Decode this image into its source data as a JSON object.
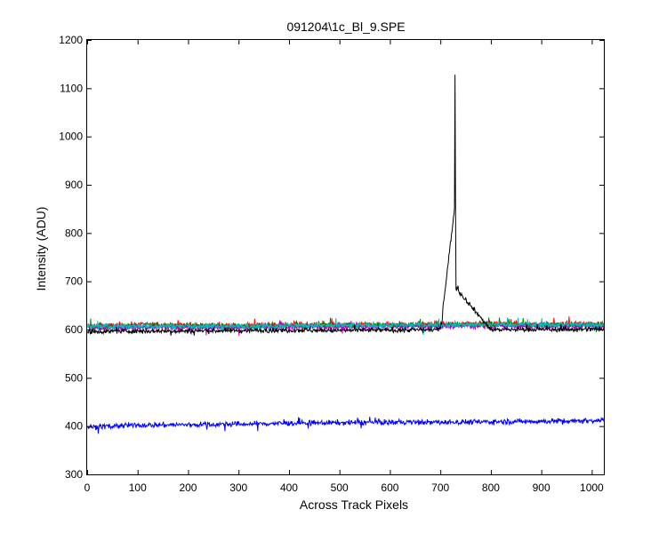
{
  "chart_data": {
    "type": "line",
    "title": "091204\\1c_Bl_9.SPE",
    "xlabel": "Across Track Pixels",
    "ylabel": "Intensity (ADU)",
    "xlim": [
      0,
      1024
    ],
    "ylim": [
      300,
      1200
    ],
    "xticks": [
      0,
      100,
      200,
      300,
      400,
      500,
      600,
      700,
      800,
      900,
      1000
    ],
    "yticks": [
      300,
      400,
      500,
      600,
      700,
      800,
      900,
      1000,
      1100,
      1200
    ],
    "grid": false,
    "legend": "none",
    "series": [
      {
        "color": "#ff0000",
        "points": [
          [
            0,
            606
          ],
          [
            100,
            610
          ],
          [
            200,
            609
          ],
          [
            300,
            608
          ],
          [
            400,
            610
          ],
          [
            500,
            609
          ],
          [
            600,
            610
          ],
          [
            700,
            611
          ],
          [
            800,
            612
          ],
          [
            900,
            611
          ],
          [
            1024,
            612
          ]
        ],
        "noise": 10
      },
      {
        "color": "#008000",
        "points": [
          [
            0,
            605
          ],
          [
            100,
            609
          ],
          [
            200,
            608
          ],
          [
            300,
            607
          ],
          [
            400,
            609
          ],
          [
            500,
            608
          ],
          [
            600,
            609
          ],
          [
            700,
            610
          ],
          [
            800,
            611
          ],
          [
            900,
            610
          ],
          [
            1024,
            611
          ]
        ],
        "noise": 10
      },
      {
        "color": "#bf00bf",
        "points": [
          [
            0,
            603
          ],
          [
            100,
            605
          ],
          [
            200,
            604
          ],
          [
            300,
            604
          ],
          [
            400,
            606
          ],
          [
            500,
            605
          ],
          [
            600,
            606
          ],
          [
            700,
            607
          ],
          [
            800,
            608
          ],
          [
            900,
            607
          ],
          [
            1024,
            608
          ]
        ],
        "noise": 10
      },
      {
        "color": "#00bfbf",
        "points": [
          [
            0,
            606
          ],
          [
            100,
            608
          ],
          [
            200,
            607
          ],
          [
            300,
            607
          ],
          [
            400,
            609
          ],
          [
            500,
            608
          ],
          [
            600,
            609
          ],
          [
            700,
            610
          ],
          [
            800,
            611
          ],
          [
            900,
            610
          ],
          [
            1024,
            611
          ]
        ],
        "noise": 10
      },
      {
        "color": "#0000ff",
        "points": [
          [
            0,
            398
          ],
          [
            100,
            402
          ],
          [
            200,
            403
          ],
          [
            300,
            404
          ],
          [
            400,
            406
          ],
          [
            500,
            407
          ],
          [
            600,
            408
          ],
          [
            700,
            408
          ],
          [
            800,
            409
          ],
          [
            900,
            410
          ],
          [
            1024,
            412
          ]
        ],
        "noise": 9
      },
      {
        "color": "#000000",
        "points": [
          [
            0,
            596
          ],
          [
            100,
            597
          ],
          [
            200,
            597
          ],
          [
            300,
            598
          ],
          [
            400,
            599
          ],
          [
            500,
            598
          ],
          [
            600,
            599
          ],
          [
            700,
            600
          ],
          [
            729,
            1128
          ],
          [
            730,
            868
          ],
          [
            731,
            686
          ],
          [
            800,
            600
          ],
          [
            900,
            600
          ],
          [
            1024,
            601
          ]
        ],
        "noise": 8
      }
    ]
  }
}
